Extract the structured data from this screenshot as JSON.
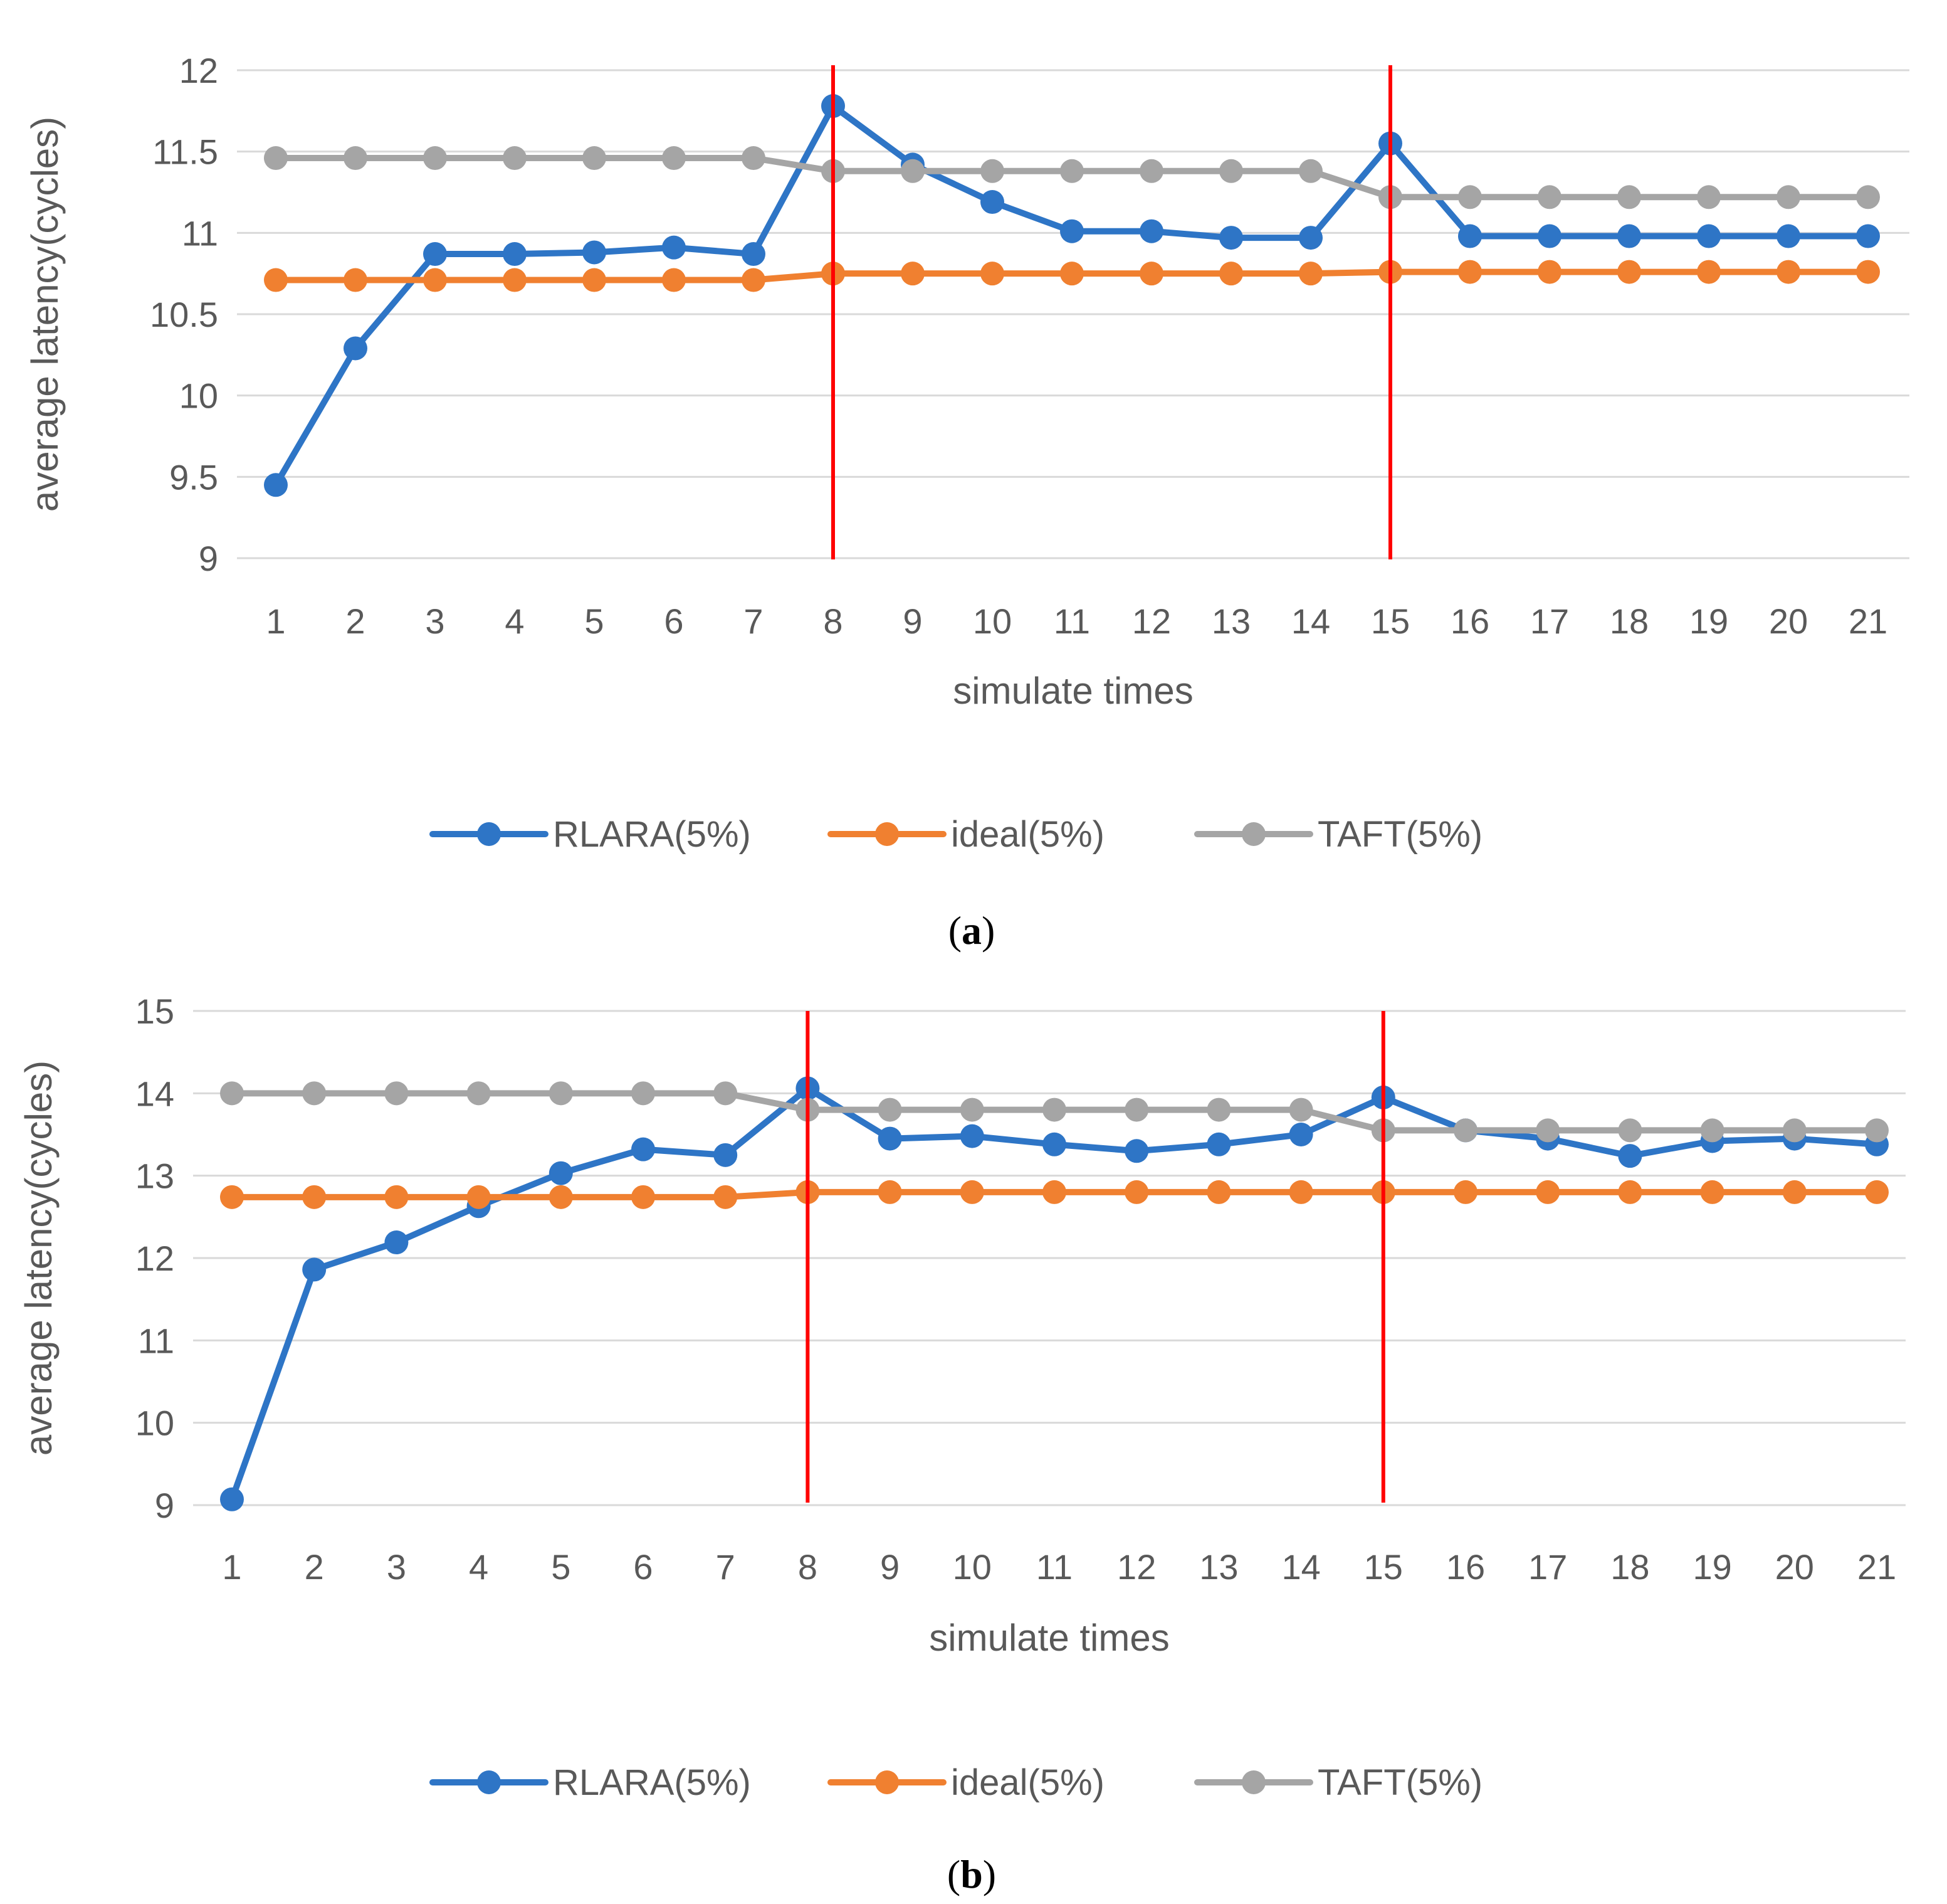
{
  "chart_data": [
    {
      "type": "line",
      "caption_letter": "a",
      "xlabel": "simulate times",
      "ylabel": "average latency(cycles)",
      "ylim": [
        9,
        12
      ],
      "yticks": [
        "9",
        "9.5",
        "10",
        "10.5",
        "11",
        "11.5",
        "12"
      ],
      "categories": [
        "1",
        "2",
        "3",
        "4",
        "5",
        "6",
        "7",
        "8",
        "9",
        "10",
        "11",
        "12",
        "13",
        "14",
        "15",
        "16",
        "17",
        "18",
        "19",
        "20",
        "21"
      ],
      "grid": true,
      "legend_position": "bottom",
      "vlines_at": [
        "8",
        "15"
      ],
      "series": [
        {
          "name": "RLARA(5%)",
          "color": "#2E75C6",
          "values": [
            9.45,
            10.29,
            10.87,
            10.87,
            10.88,
            10.91,
            10.87,
            11.78,
            11.42,
            11.19,
            11.01,
            11.01,
            10.97,
            10.97,
            11.55,
            10.98,
            10.98,
            10.98,
            10.98,
            10.98,
            10.98
          ]
        },
        {
          "name": "ideal(5%)",
          "color": "#F08030",
          "values": [
            10.71,
            10.71,
            10.71,
            10.71,
            10.71,
            10.71,
            10.71,
            10.75,
            10.75,
            10.75,
            10.75,
            10.75,
            10.75,
            10.75,
            10.76,
            10.76,
            10.76,
            10.76,
            10.76,
            10.76,
            10.76
          ]
        },
        {
          "name": "TAFT(5%)",
          "color": "#A5A5A5",
          "values": [
            11.46,
            11.46,
            11.46,
            11.46,
            11.46,
            11.46,
            11.46,
            11.38,
            11.38,
            11.38,
            11.38,
            11.38,
            11.38,
            11.38,
            11.22,
            11.22,
            11.22,
            11.22,
            11.22,
            11.22,
            11.22
          ]
        }
      ]
    },
    {
      "type": "line",
      "caption_letter": "b",
      "xlabel": "simulate times",
      "ylabel": "average latency(cycles)",
      "ylim": [
        9,
        15
      ],
      "yticks": [
        "9",
        "10",
        "11",
        "12",
        "13",
        "14",
        "15"
      ],
      "categories": [
        "1",
        "2",
        "3",
        "4",
        "5",
        "6",
        "7",
        "8",
        "9",
        "10",
        "11",
        "12",
        "13",
        "14",
        "15",
        "16",
        "17",
        "18",
        "19",
        "20",
        "21"
      ],
      "grid": true,
      "legend_position": "bottom",
      "vlines_at": [
        "8",
        "15"
      ],
      "series": [
        {
          "name": "RLARA(5%)",
          "color": "#2E75C6",
          "values": [
            9.07,
            11.86,
            12.19,
            12.63,
            13.03,
            13.32,
            13.25,
            14.06,
            13.45,
            13.48,
            13.38,
            13.3,
            13.38,
            13.5,
            13.95,
            13.55,
            13.45,
            13.24,
            13.42,
            13.45,
            13.38
          ]
        },
        {
          "name": "ideal(5%)",
          "color": "#F08030",
          "values": [
            12.74,
            12.74,
            12.74,
            12.74,
            12.74,
            12.74,
            12.74,
            12.8,
            12.8,
            12.8,
            12.8,
            12.8,
            12.8,
            12.8,
            12.8,
            12.8,
            12.8,
            12.8,
            12.8,
            12.8,
            12.8
          ]
        },
        {
          "name": "TAFT(5%)",
          "color": "#A5A5A5",
          "values": [
            14.0,
            14.0,
            14.0,
            14.0,
            14.0,
            14.0,
            14.0,
            13.8,
            13.8,
            13.8,
            13.8,
            13.8,
            13.8,
            13.8,
            13.55,
            13.55,
            13.55,
            13.55,
            13.55,
            13.55,
            13.55
          ]
        }
      ]
    }
  ]
}
